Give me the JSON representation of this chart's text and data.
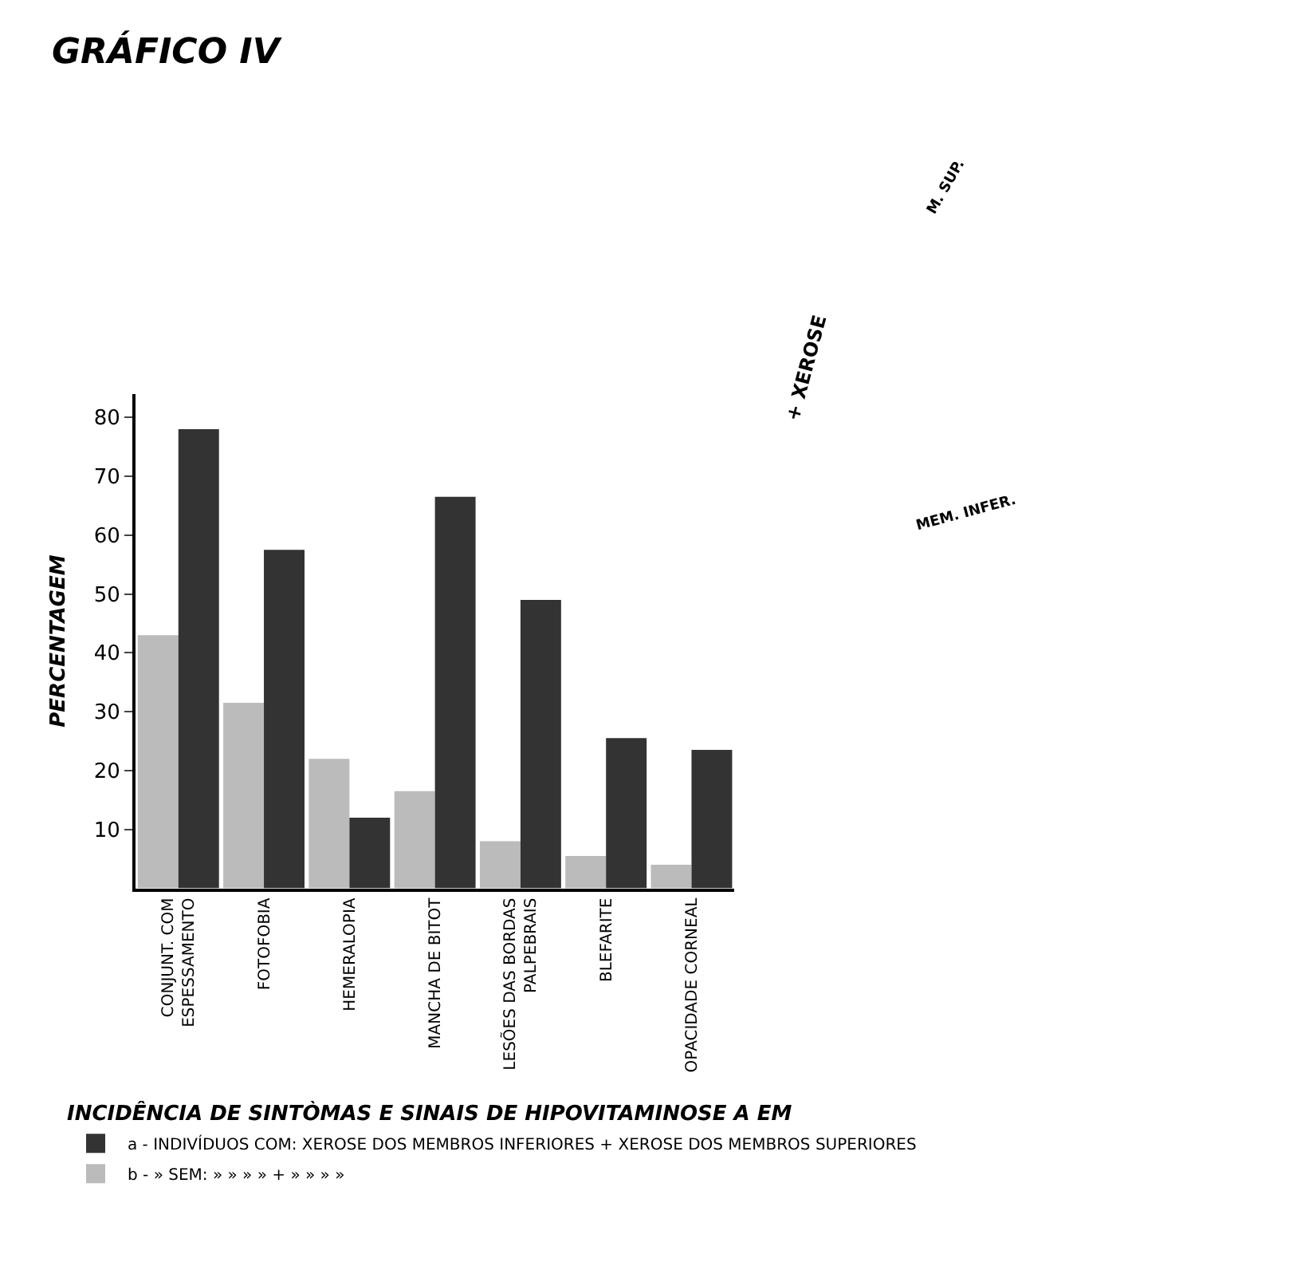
{
  "chart_data": {
    "type": "bar",
    "title": "GRÁFICO IV",
    "ylabel": "PERCENTAGEM",
    "legend_title": "INCIDÊNCIA DE SINTÒMAS E SINAIS DE HIPOVITAMINOSE A EM",
    "categories": [
      "CONJUNT. COM\nESPESSAMENTO",
      "FOTOFOBIA",
      "HEMERALOPIA",
      "MANCHA DE BITOT",
      "LESÕES DAS BORDAS\nPALPEBRAIS",
      "BLEFARITE",
      "OPACIDADE CORNEAL"
    ],
    "series": [
      {
        "name": "b - » SEM: » » » » + » » » »",
        "color": "#bbbbbb",
        "values": [
          43,
          31.5,
          22,
          16.5,
          8,
          5.5,
          4
        ]
      },
      {
        "name": "a - INDIVÍDUOS COM: XEROSE DOS MEMBROS INFERIORES + XEROSE DOS MEMBROS SUPERIORES",
        "color": "#333333",
        "values": [
          78,
          57.5,
          12,
          66.5,
          49,
          25.5,
          23.5
        ]
      }
    ],
    "ylim": [
      0,
      84
    ],
    "yticks": [
      10,
      20,
      30,
      40,
      50,
      60,
      70,
      80
    ],
    "legend": "bottom",
    "annotations": [
      "+ XEROSE",
      "M. SUP.",
      "MEM. INFER."
    ]
  }
}
